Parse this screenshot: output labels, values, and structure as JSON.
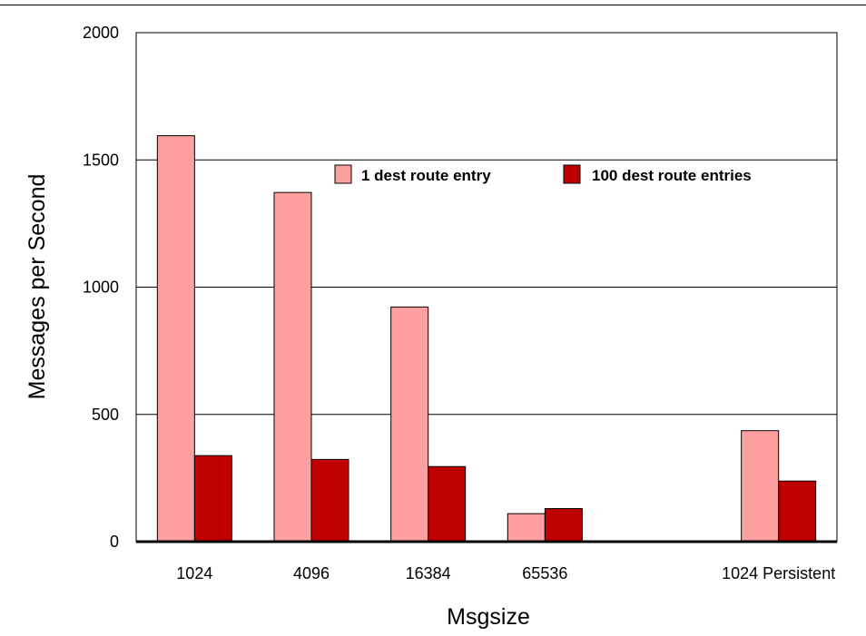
{
  "chart_data": {
    "type": "bar",
    "title": "",
    "xlabel": "Msgsize",
    "ylabel": "Messages per Second",
    "ylim": [
      0,
      2000
    ],
    "yticks": [
      0,
      500,
      1000,
      1500,
      2000
    ],
    "grid": true,
    "legend_position": "top-center",
    "categories": [
      "1024",
      "4096",
      "16384",
      "65536",
      "",
      "1024 Persistent"
    ],
    "series": [
      {
        "name": "1 dest route entry",
        "color": "#ffa0a0",
        "values": [
          1595,
          1372,
          922,
          110,
          null,
          436
        ]
      },
      {
        "name": "100 dest route entries",
        "color": "#c00000",
        "values": [
          338,
          323,
          295,
          130,
          null,
          238
        ]
      }
    ]
  }
}
